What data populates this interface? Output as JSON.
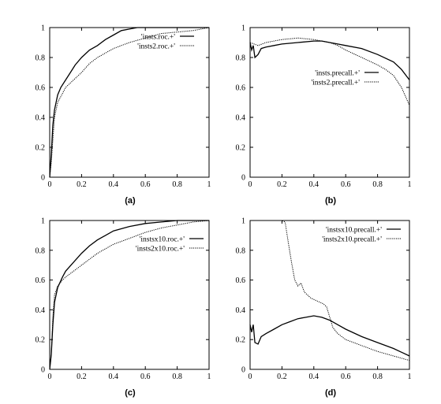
{
  "chart_data": [
    {
      "type": "line",
      "panel_label": "(a)",
      "xlim": [
        0,
        1
      ],
      "ylim": [
        0,
        1
      ],
      "x_ticks": [
        0,
        0.2,
        0.4,
        0.6,
        0.8,
        1
      ],
      "y_ticks": [
        0,
        0.2,
        0.4,
        0.6,
        0.8,
        1
      ],
      "x_tick_labels": [
        "0",
        "0.2",
        "0.4",
        "0.6",
        "0.8",
        "1"
      ],
      "y_tick_labels": [
        "0",
        "0.2",
        "0.4",
        "0.6",
        "0.8",
        "1"
      ],
      "legend_position": "top-right",
      "series": [
        {
          "name": "'insts.roc.+'",
          "style": "solid",
          "x": [
            0,
            0.01,
            0.02,
            0.03,
            0.05,
            0.07,
            0.1,
            0.13,
            0.16,
            0.2,
            0.25,
            0.3,
            0.35,
            0.4,
            0.45,
            0.5,
            0.55,
            0.6,
            1.0
          ],
          "y": [
            0,
            0.15,
            0.35,
            0.45,
            0.55,
            0.6,
            0.65,
            0.7,
            0.75,
            0.8,
            0.85,
            0.88,
            0.92,
            0.95,
            0.98,
            0.99,
            1.0,
            1.0,
            1.0
          ]
        },
        {
          "name": "'insts2.roc.+'",
          "style": "dotted",
          "x": [
            0,
            0.01,
            0.02,
            0.03,
            0.05,
            0.08,
            0.1,
            0.15,
            0.2,
            0.25,
            0.3,
            0.35,
            0.4,
            0.5,
            0.6,
            0.7,
            0.8,
            0.9,
            1.0
          ],
          "y": [
            0,
            0.1,
            0.25,
            0.4,
            0.5,
            0.56,
            0.6,
            0.65,
            0.7,
            0.76,
            0.8,
            0.83,
            0.86,
            0.9,
            0.93,
            0.96,
            0.97,
            0.98,
            1.0
          ]
        }
      ]
    },
    {
      "type": "line",
      "panel_label": "(b)",
      "xlim": [
        0,
        1
      ],
      "ylim": [
        0,
        1
      ],
      "x_ticks": [
        0,
        0.2,
        0.4,
        0.6,
        0.8,
        1
      ],
      "y_ticks": [
        0,
        0.2,
        0.4,
        0.6,
        0.8,
        1
      ],
      "x_tick_labels": [
        "0",
        "0.2",
        "0.4",
        "0.6",
        "0.8",
        "1"
      ],
      "y_tick_labels": [
        "0",
        "0.2",
        "0.4",
        "0.6",
        "0.8",
        "1"
      ],
      "legend_position": "top-right",
      "series": [
        {
          "name": "'insts.precall.+'",
          "style": "solid",
          "x": [
            0.0,
            0.01,
            0.02,
            0.03,
            0.05,
            0.07,
            0.1,
            0.15,
            0.2,
            0.3,
            0.4,
            0.45,
            0.5,
            0.55,
            0.6,
            0.7,
            0.8,
            0.9,
            0.95,
            1.0
          ],
          "y": [
            0.9,
            0.85,
            0.88,
            0.8,
            0.82,
            0.86,
            0.87,
            0.88,
            0.89,
            0.9,
            0.91,
            0.91,
            0.9,
            0.89,
            0.88,
            0.86,
            0.82,
            0.77,
            0.72,
            0.65
          ]
        },
        {
          "name": "'insts2.precall.+'",
          "style": "dotted",
          "x": [
            0.0,
            0.05,
            0.1,
            0.2,
            0.3,
            0.4,
            0.45,
            0.5,
            0.55,
            0.6,
            0.7,
            0.8,
            0.85,
            0.9,
            0.95,
            1.0
          ],
          "y": [
            0.9,
            0.88,
            0.9,
            0.92,
            0.93,
            0.92,
            0.91,
            0.9,
            0.88,
            0.85,
            0.8,
            0.75,
            0.72,
            0.68,
            0.6,
            0.48
          ]
        }
      ]
    },
    {
      "type": "line",
      "panel_label": "(c)",
      "xlim": [
        0,
        1
      ],
      "ylim": [
        0,
        1
      ],
      "x_ticks": [
        0,
        0.2,
        0.4,
        0.6,
        0.8,
        1
      ],
      "y_ticks": [
        0,
        0.2,
        0.4,
        0.6,
        0.8,
        1
      ],
      "x_tick_labels": [
        "0",
        "0.2",
        "0.4",
        "0.6",
        "0.8",
        "1"
      ],
      "y_tick_labels": [
        "0",
        "0.2",
        "0.4",
        "0.6",
        "0.8",
        "1"
      ],
      "legend_position": "top-right",
      "series": [
        {
          "name": "'instsx10.roc.+'",
          "style": "solid",
          "x": [
            0,
            0.01,
            0.02,
            0.03,
            0.05,
            0.08,
            0.1,
            0.15,
            0.2,
            0.25,
            0.3,
            0.35,
            0.4,
            0.5,
            0.6,
            0.7,
            0.8,
            1.0
          ],
          "y": [
            0,
            0.1,
            0.3,
            0.45,
            0.55,
            0.62,
            0.66,
            0.72,
            0.78,
            0.83,
            0.87,
            0.9,
            0.93,
            0.96,
            0.98,
            0.99,
            1.0,
            1.0
          ]
        },
        {
          "name": "'insts2x10.roc.+'",
          "style": "dotted",
          "x": [
            0,
            0.01,
            0.02,
            0.03,
            0.05,
            0.08,
            0.1,
            0.15,
            0.2,
            0.25,
            0.3,
            0.4,
            0.5,
            0.6,
            0.7,
            0.8,
            0.9,
            1.0
          ],
          "y": [
            0,
            0.1,
            0.35,
            0.5,
            0.56,
            0.6,
            0.62,
            0.66,
            0.7,
            0.74,
            0.78,
            0.84,
            0.88,
            0.92,
            0.95,
            0.97,
            0.99,
            1.0
          ]
        }
      ]
    },
    {
      "type": "line",
      "panel_label": "(d)",
      "xlim": [
        0,
        1
      ],
      "ylim": [
        0,
        1
      ],
      "x_ticks": [
        0,
        0.2,
        0.4,
        0.6,
        0.8,
        1
      ],
      "y_ticks": [
        0,
        0.2,
        0.4,
        0.6,
        0.8,
        1
      ],
      "x_tick_labels": [
        "0",
        "0.2",
        "0.4",
        "0.6",
        "0.8",
        "1"
      ],
      "y_tick_labels": [
        "0",
        "0.2",
        "0.4",
        "0.6",
        "0.8",
        "1"
      ],
      "legend_position": "top-right",
      "series": [
        {
          "name": "'instsx10.precall.+'",
          "style": "solid",
          "x": [
            0.0,
            0.01,
            0.02,
            0.03,
            0.05,
            0.07,
            0.1,
            0.15,
            0.2,
            0.25,
            0.3,
            0.35,
            0.4,
            0.45,
            0.5,
            0.55,
            0.6,
            0.7,
            0.8,
            0.9,
            1.0
          ],
          "y": [
            0.3,
            0.25,
            0.3,
            0.18,
            0.17,
            0.22,
            0.24,
            0.27,
            0.3,
            0.32,
            0.34,
            0.35,
            0.36,
            0.35,
            0.33,
            0.3,
            0.27,
            0.22,
            0.18,
            0.14,
            0.09
          ]
        },
        {
          "name": "'insts2x10.precall.+'",
          "style": "dotted",
          "x": [
            0.0,
            0.1,
            0.2,
            0.22,
            0.24,
            0.26,
            0.28,
            0.3,
            0.32,
            0.34,
            0.36,
            0.38,
            0.4,
            0.42,
            0.44,
            0.46,
            0.48,
            0.5,
            0.52,
            0.55,
            0.6,
            0.7,
            0.8,
            0.9,
            1.0
          ],
          "y": [
            1.0,
            1.0,
            1.0,
            0.99,
            0.85,
            0.72,
            0.6,
            0.56,
            0.58,
            0.52,
            0.5,
            0.48,
            0.47,
            0.46,
            0.45,
            0.44,
            0.42,
            0.35,
            0.28,
            0.24,
            0.2,
            0.16,
            0.12,
            0.09,
            0.06
          ]
        }
      ]
    }
  ]
}
